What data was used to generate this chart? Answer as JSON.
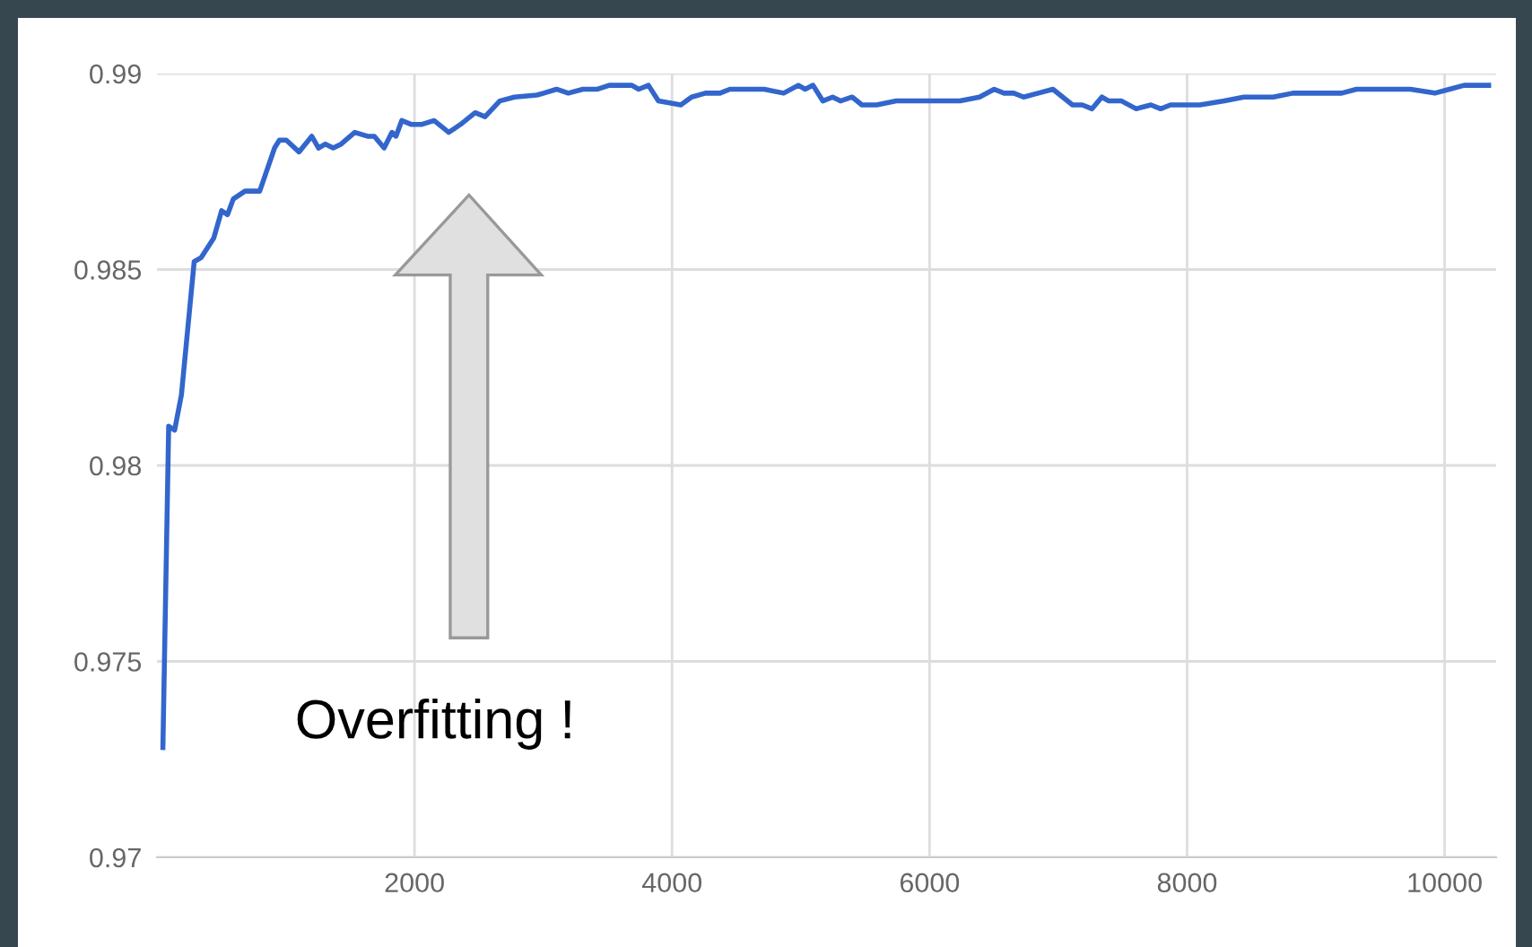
{
  "chart_data": {
    "type": "line",
    "xlim": [
      0,
      10400
    ],
    "ylim": [
      0.97,
      0.99
    ],
    "xticks": [
      2000,
      4000,
      6000,
      8000,
      10000
    ],
    "yticks": [
      0.97,
      0.975,
      0.98,
      0.985,
      0.99
    ],
    "grid": true,
    "line_style": "solid",
    "annotations": [
      "Overfitting !"
    ],
    "series": [
      {
        "color": "#3366cc",
        "x": [
          46,
          91,
          137,
          190,
          289,
          342,
          441,
          502,
          548,
          593,
          684,
          798,
          913,
          951,
          1004,
          1103,
          1202,
          1255,
          1308,
          1369,
          1430,
          1536,
          1635,
          1688,
          1764,
          1825,
          1856,
          1901,
          1977,
          2053,
          2152,
          2266,
          2357,
          2471,
          2548,
          2662,
          2776,
          2951,
          3004,
          3103,
          3194,
          3308,
          3422,
          3513,
          3688,
          3741,
          3817,
          3894,
          4068,
          4152,
          4259,
          4373,
          4449,
          4563,
          4715,
          4867,
          4981,
          5034,
          5095,
          5171,
          5247,
          5308,
          5399,
          5475,
          5589,
          5741,
          5817,
          5932,
          6236,
          6388,
          6502,
          6578,
          6654,
          6730,
          6844,
          6958,
          7034,
          7110,
          7186,
          7262,
          7338,
          7392,
          7491,
          7605,
          7719,
          7795,
          7871,
          8099,
          8289,
          8441,
          8593,
          8669,
          8821,
          8973,
          9125,
          9201,
          9316,
          9430,
          9734,
          9924,
          10038,
          10152,
          10342
        ],
        "values": [
          0.9728,
          0.981,
          0.9809,
          0.9818,
          0.9852,
          0.9853,
          0.9858,
          0.9865,
          0.9864,
          0.9868,
          0.987,
          0.987,
          0.9881,
          0.9883,
          0.9883,
          0.988,
          0.9884,
          0.9881,
          0.9882,
          0.9881,
          0.9882,
          0.9885,
          0.9884,
          0.9884,
          0.9881,
          0.9885,
          0.9884,
          0.9888,
          0.9887,
          0.9887,
          0.9888,
          0.9885,
          0.9887,
          0.989,
          0.9889,
          0.9893,
          0.9894,
          0.98945,
          0.9895,
          0.9896,
          0.9895,
          0.9896,
          0.9896,
          0.9897,
          0.9897,
          0.9896,
          0.9897,
          0.9893,
          0.9892,
          0.9894,
          0.9895,
          0.9895,
          0.9896,
          0.9896,
          0.9896,
          0.9895,
          0.9897,
          0.9896,
          0.9897,
          0.9893,
          0.9894,
          0.9893,
          0.9894,
          0.9892,
          0.9892,
          0.9893,
          0.9893,
          0.9893,
          0.9893,
          0.9894,
          0.9896,
          0.9895,
          0.9895,
          0.9894,
          0.9895,
          0.9896,
          0.9894,
          0.9892,
          0.9892,
          0.9891,
          0.9894,
          0.9893,
          0.9893,
          0.9891,
          0.9892,
          0.9891,
          0.9892,
          0.9892,
          0.9893,
          0.9894,
          0.9894,
          0.9894,
          0.9895,
          0.9895,
          0.9895,
          0.9895,
          0.9896,
          0.9896,
          0.9896,
          0.9895,
          0.9896,
          0.9897,
          0.9897
        ]
      }
    ]
  }
}
